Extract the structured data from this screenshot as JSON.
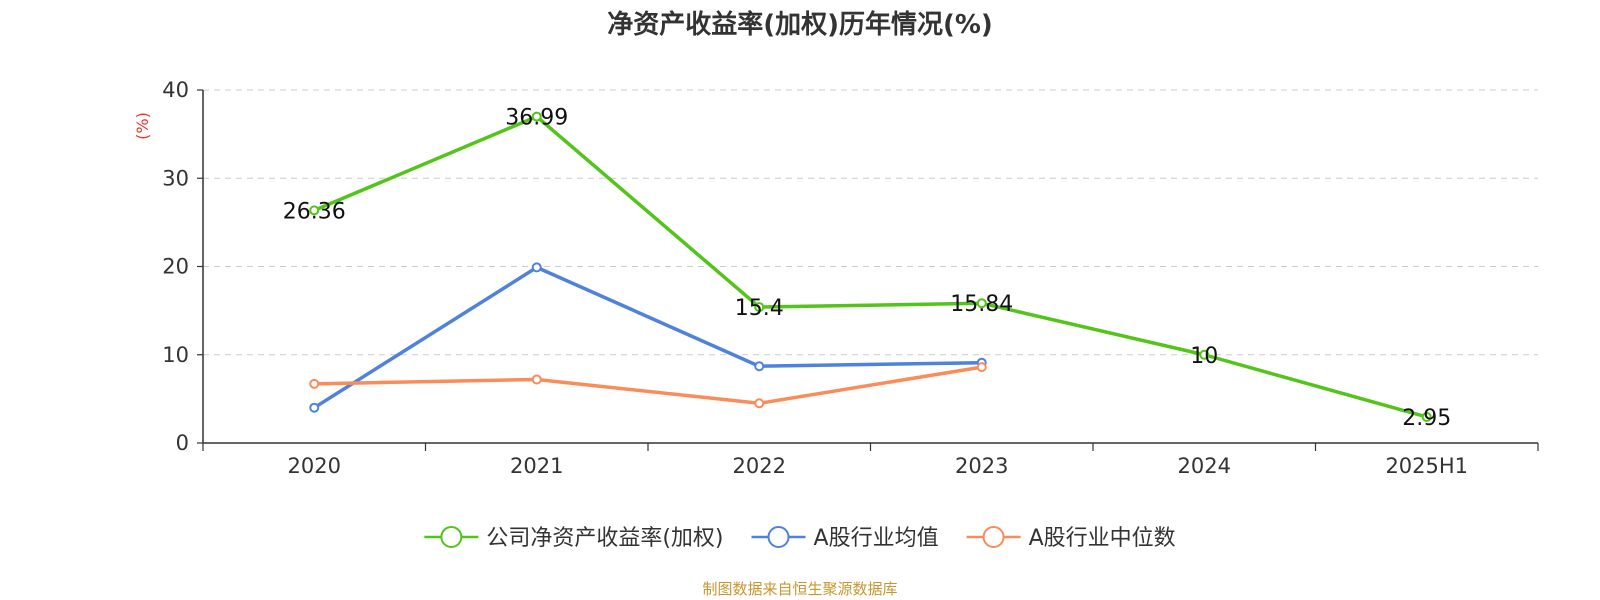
{
  "chart_data": {
    "type": "line",
    "title": "净资产收益率(加权)历年情况(%)",
    "ylabel": "(%)",
    "categories": [
      "2020",
      "2021",
      "2022",
      "2023",
      "2024",
      "2025H1"
    ],
    "ylim": [
      0,
      40
    ],
    "yticks": [
      0,
      10,
      20,
      30,
      40
    ],
    "grid": true,
    "legend_position": "bottom",
    "series": [
      {
        "name": "公司净资产收益率(加权)",
        "color": "#52c41a",
        "values": [
          26.36,
          36.99,
          15.4,
          15.84,
          10,
          2.95
        ],
        "labels": true
      },
      {
        "name": "A股行业均值",
        "color": "#4f81de",
        "values": [
          4.0,
          19.9,
          8.7,
          9.1,
          null,
          null
        ],
        "labels": false
      },
      {
        "name": "A股行业中位数",
        "color": "#fa8c5a",
        "values": [
          6.7,
          7.2,
          4.5,
          8.6,
          null,
          null
        ],
        "labels": false
      }
    ]
  },
  "source": "制图数据来自恒生聚源数据库"
}
